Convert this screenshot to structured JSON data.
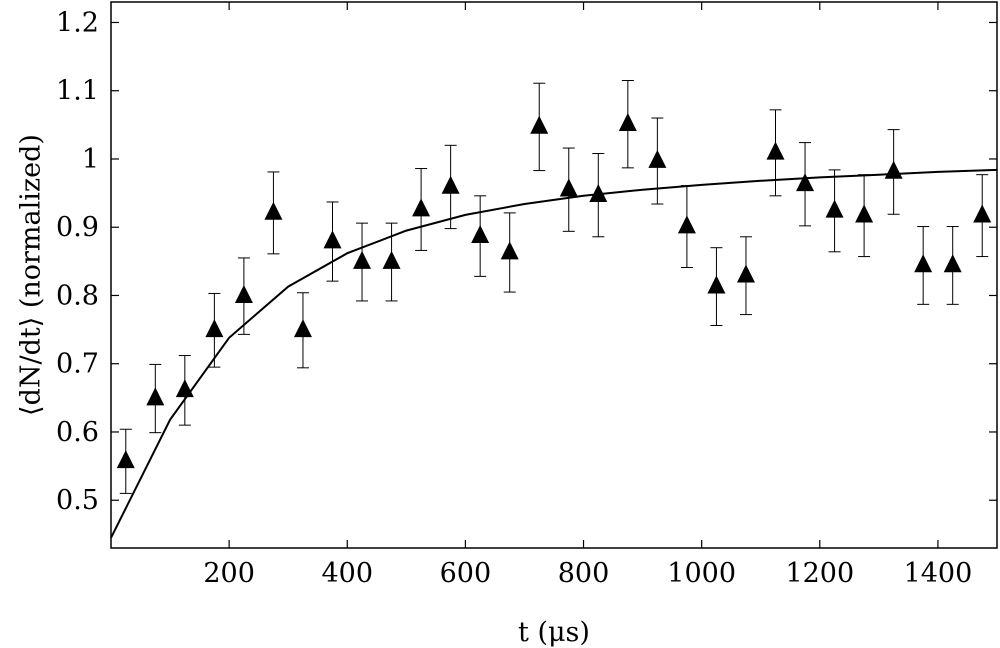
{
  "chart_data": {
    "type": "scatter",
    "xlabel": "t (μs)",
    "ylabel": "⟨dN/dt⟩ (normalized)",
    "xlim": [
      0,
      1500
    ],
    "ylim": [
      0.43,
      1.23
    ],
    "x_ticks": [
      200,
      400,
      600,
      800,
      1000,
      1200,
      1400
    ],
    "y_ticks": [
      0.5,
      0.6,
      0.7,
      0.8,
      0.9,
      1,
      1.1,
      1.2
    ],
    "y_tick_labels": [
      "0.5",
      "0.6",
      "0.7",
      "0.8",
      "0.9",
      "1",
      "1.1",
      "1.2"
    ],
    "grid": false,
    "series": [
      {
        "marker": "filled-triangle",
        "color": "#000000",
        "points": [
          {
            "x": 25,
            "y": 0.557,
            "err": 0.047
          },
          {
            "x": 75,
            "y": 0.649,
            "err": 0.05
          },
          {
            "x": 125,
            "y": 0.661,
            "err": 0.051
          },
          {
            "x": 175,
            "y": 0.749,
            "err": 0.054
          },
          {
            "x": 225,
            "y": 0.799,
            "err": 0.056
          },
          {
            "x": 275,
            "y": 0.921,
            "err": 0.06
          },
          {
            "x": 325,
            "y": 0.749,
            "err": 0.055
          },
          {
            "x": 375,
            "y": 0.879,
            "err": 0.058
          },
          {
            "x": 425,
            "y": 0.849,
            "err": 0.057
          },
          {
            "x": 475,
            "y": 0.849,
            "err": 0.057
          },
          {
            "x": 525,
            "y": 0.926,
            "err": 0.06
          },
          {
            "x": 575,
            "y": 0.959,
            "err": 0.061
          },
          {
            "x": 625,
            "y": 0.887,
            "err": 0.059
          },
          {
            "x": 675,
            "y": 0.863,
            "err": 0.058
          },
          {
            "x": 725,
            "y": 1.047,
            "err": 0.064
          },
          {
            "x": 775,
            "y": 0.955,
            "err": 0.061
          },
          {
            "x": 825,
            "y": 0.947,
            "err": 0.061
          },
          {
            "x": 875,
            "y": 1.051,
            "err": 0.064
          },
          {
            "x": 925,
            "y": 0.997,
            "err": 0.063
          },
          {
            "x": 975,
            "y": 0.901,
            "err": 0.06
          },
          {
            "x": 1025,
            "y": 0.813,
            "err": 0.057
          },
          {
            "x": 1075,
            "y": 0.829,
            "err": 0.057
          },
          {
            "x": 1125,
            "y": 1.009,
            "err": 0.063
          },
          {
            "x": 1175,
            "y": 0.963,
            "err": 0.061
          },
          {
            "x": 1225,
            "y": 0.924,
            "err": 0.06
          },
          {
            "x": 1275,
            "y": 0.917,
            "err": 0.06
          },
          {
            "x": 1325,
            "y": 0.981,
            "err": 0.062
          },
          {
            "x": 1375,
            "y": 0.844,
            "err": 0.057
          },
          {
            "x": 1425,
            "y": 0.844,
            "err": 0.057
          },
          {
            "x": 1475,
            "y": 0.917,
            "err": 0.06
          }
        ]
      }
    ],
    "fit_curve": {
      "type": "line",
      "function": "exponential-saturation",
      "color": "#000000",
      "x": [
        0,
        100,
        200,
        300,
        400,
        500,
        600,
        700,
        800,
        900,
        1000,
        1100,
        1200,
        1300,
        1400,
        1500
      ],
      "y": [
        0.445,
        0.618,
        0.738,
        0.813,
        0.862,
        0.895,
        0.918,
        0.934,
        0.946,
        0.955,
        0.962,
        0.968,
        0.973,
        0.977,
        0.981,
        0.984
      ]
    }
  }
}
